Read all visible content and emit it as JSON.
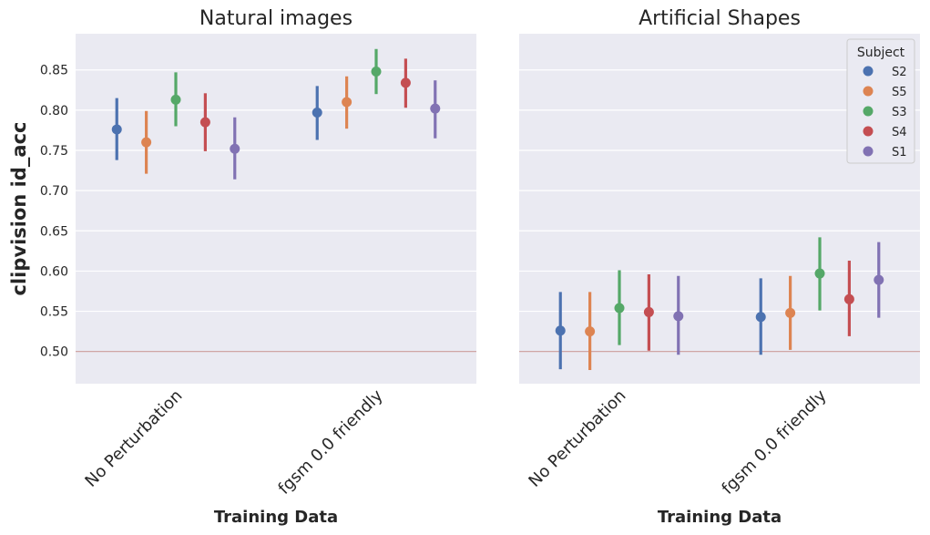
{
  "chart_data": [
    {
      "type": "point",
      "title": "Natural images",
      "xlabel": "Training Data",
      "ylabel": "clipvision id_acc",
      "categories": [
        "No Perturbation",
        "fgsm 0.0 friendly"
      ],
      "ylim": [
        0.46,
        0.895
      ],
      "yticks": [
        0.5,
        0.55,
        0.6,
        0.65,
        0.7,
        0.75,
        0.8,
        0.85
      ],
      "reference_line": 0.5,
      "grid": true,
      "series": [
        {
          "name": "S2",
          "color": "#4c72b0",
          "values": [
            0.776,
            0.797
          ],
          "ci_low": [
            0.738,
            0.763
          ],
          "ci_high": [
            0.815,
            0.83
          ]
        },
        {
          "name": "S5",
          "color": "#dd8452",
          "values": [
            0.76,
            0.81
          ],
          "ci_low": [
            0.721,
            0.777
          ],
          "ci_high": [
            0.799,
            0.842
          ]
        },
        {
          "name": "S3",
          "color": "#55a868",
          "values": [
            0.813,
            0.848
          ],
          "ci_low": [
            0.78,
            0.82
          ],
          "ci_high": [
            0.847,
            0.876
          ]
        },
        {
          "name": "S4",
          "color": "#c44e52",
          "values": [
            0.785,
            0.834
          ],
          "ci_low": [
            0.749,
            0.803
          ],
          "ci_high": [
            0.821,
            0.864
          ]
        },
        {
          "name": "S1",
          "color": "#8172b3",
          "values": [
            0.752,
            0.802
          ],
          "ci_low": [
            0.714,
            0.765
          ],
          "ci_high": [
            0.791,
            0.837
          ]
        }
      ]
    },
    {
      "type": "point",
      "title": "Artificial Shapes",
      "xlabel": "Training Data",
      "categories": [
        "No Perturbation",
        "fgsm 0.0 friendly"
      ],
      "ylim": [
        0.46,
        0.895
      ],
      "reference_line": 0.5,
      "grid": true,
      "legend": {
        "title": "Subject",
        "placement": "top-right"
      },
      "series": [
        {
          "name": "S2",
          "color": "#4c72b0",
          "values": [
            0.526,
            0.543
          ],
          "ci_low": [
            0.478,
            0.496
          ],
          "ci_high": [
            0.574,
            0.591
          ]
        },
        {
          "name": "S5",
          "color": "#dd8452",
          "values": [
            0.525,
            0.548
          ],
          "ci_low": [
            0.477,
            0.502
          ],
          "ci_high": [
            0.574,
            0.594
          ]
        },
        {
          "name": "S3",
          "color": "#55a868",
          "values": [
            0.554,
            0.597
          ],
          "ci_low": [
            0.508,
            0.551
          ],
          "ci_high": [
            0.601,
            0.642
          ]
        },
        {
          "name": "S4",
          "color": "#c44e52",
          "values": [
            0.549,
            0.565
          ],
          "ci_low": [
            0.501,
            0.519
          ],
          "ci_high": [
            0.596,
            0.613
          ]
        },
        {
          "name": "S1",
          "color": "#8172b3",
          "values": [
            0.544,
            0.589
          ],
          "ci_low": [
            0.496,
            0.542
          ],
          "ci_high": [
            0.594,
            0.636
          ]
        }
      ]
    }
  ]
}
